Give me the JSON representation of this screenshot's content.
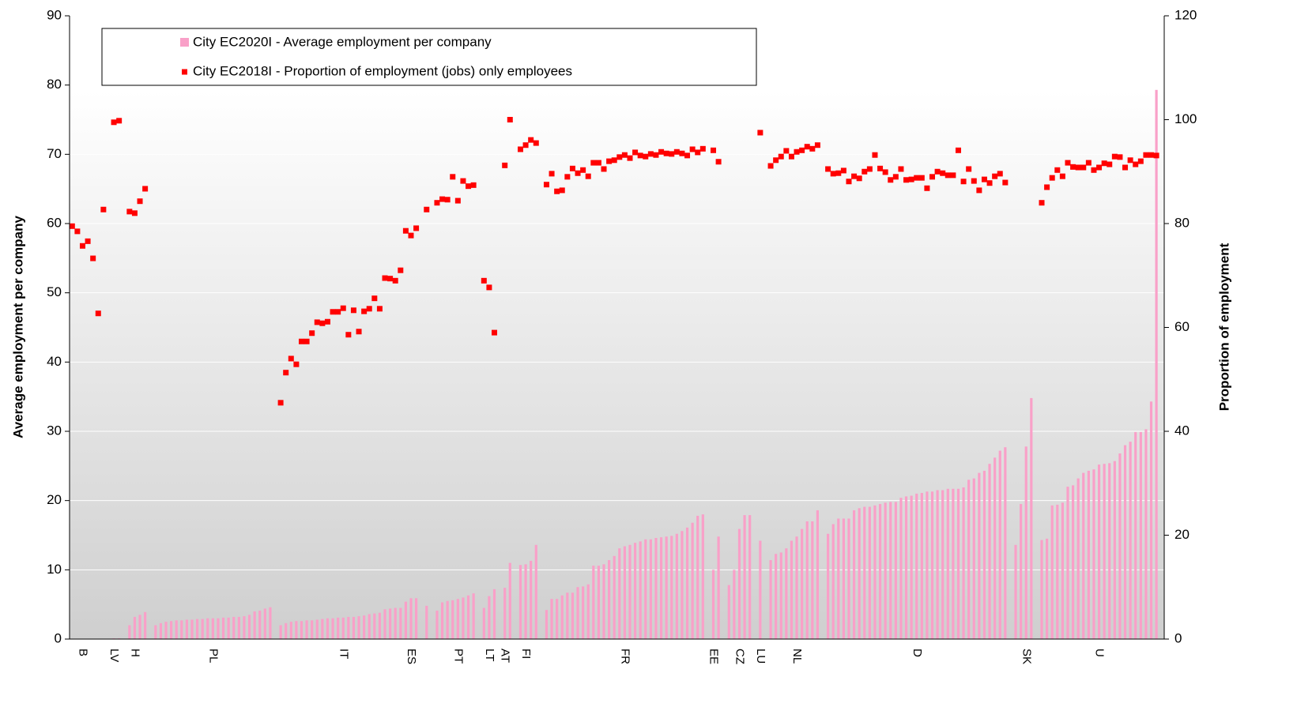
{
  "chart_data": {
    "type": "bar",
    "y_label": "Average employment per company",
    "y2_label": "Proportion of employment",
    "ylim": [
      0,
      90
    ],
    "yticks": [
      0,
      10,
      20,
      30,
      40,
      50,
      60,
      70,
      80,
      90
    ],
    "y2lim": [
      0,
      120
    ],
    "y2ticks": [
      0,
      20,
      40,
      60,
      80,
      100,
      120
    ],
    "grid": true,
    "legend": "top",
    "categories": [
      null,
      null,
      "B",
      null,
      null,
      null,
      null,
      null,
      "LV",
      null,
      null,
      null,
      "H",
      null,
      null,
      null,
      null,
      null,
      null,
      null,
      null,
      null,
      null,
      null,
      null,
      null,
      null,
      "PL",
      null,
      null,
      null,
      null,
      null,
      null,
      null,
      null,
      null,
      null,
      null,
      null,
      null,
      null,
      null,
      null,
      null,
      null,
      null,
      null,
      null,
      null,
      null,
      null,
      "IT",
      null,
      null,
      null,
      null,
      null,
      null,
      null,
      null,
      null,
      null,
      null,
      null,
      "ES",
      null,
      null,
      null,
      null,
      null,
      null,
      null,
      null,
      "PT",
      null,
      null,
      null,
      null,
      null,
      "LT",
      null,
      null,
      "AT",
      null,
      null,
      null,
      "FI",
      null,
      null,
      null,
      null,
      null,
      null,
      null,
      null,
      null,
      null,
      null,
      null,
      null,
      null,
      null,
      null,
      null,
      null,
      "FR",
      null,
      null,
      null,
      null,
      null,
      null,
      null,
      null,
      null,
      null,
      null,
      null,
      null,
      null,
      null,
      null,
      "EE",
      null,
      null,
      null,
      null,
      "CZ",
      null,
      null,
      null,
      "LU",
      null,
      null,
      null,
      null,
      null,
      null,
      "NL",
      null,
      null,
      null,
      null,
      null,
      null,
      null,
      null,
      null,
      null,
      null,
      null,
      null,
      null,
      null,
      null,
      null,
      null,
      null,
      null,
      null,
      null,
      "D",
      null,
      null,
      null,
      null,
      null,
      null,
      null,
      null,
      null,
      null,
      null,
      null,
      null,
      null,
      null,
      null,
      null,
      null,
      null,
      null,
      "SK",
      null,
      null,
      null,
      null,
      null,
      null,
      null,
      null,
      null,
      null,
      null,
      null,
      null,
      "U",
      null,
      null,
      null,
      null,
      null,
      null,
      null,
      null,
      null,
      null,
      null,
      null
    ],
    "series": [
      {
        "name": "City EC2020I - Average employment per company",
        "type": "bar",
        "color": "#f9a0c8",
        "axis": "y",
        "values": [
          null,
          null,
          null,
          null,
          null,
          null,
          null,
          null,
          0.1,
          0.1,
          null,
          2.0,
          3.2,
          3.5,
          3.9,
          null,
          2.0,
          2.3,
          2.5,
          2.6,
          2.7,
          2.7,
          2.8,
          2.8,
          2.9,
          2.9,
          3.0,
          3.0,
          3.0,
          3.1,
          3.1,
          3.2,
          3.2,
          3.3,
          3.5,
          4.0,
          4.1,
          4.4,
          4.6,
          null,
          2.0,
          2.3,
          2.5,
          2.6,
          2.6,
          2.7,
          2.7,
          2.8,
          2.9,
          3.0,
          3.0,
          3.1,
          3.1,
          3.2,
          3.2,
          3.3,
          3.4,
          3.6,
          3.7,
          3.8,
          4.3,
          4.4,
          4.5,
          4.5,
          5.4,
          5.9,
          5.9,
          null,
          4.8,
          null,
          4.1,
          5.3,
          5.5,
          5.6,
          5.8,
          6.0,
          6.3,
          6.6,
          null,
          4.5,
          6.2,
          7.2,
          null,
          7.4,
          11.0,
          null,
          10.7,
          10.8,
          11.3,
          13.6,
          null,
          4.2,
          5.8,
          5.8,
          6.3,
          6.7,
          6.7,
          7.5,
          7.6,
          7.9,
          10.6,
          10.6,
          10.8,
          11.4,
          12.0,
          13.1,
          13.4,
          13.6,
          13.9,
          14.1,
          14.4,
          14.4,
          14.6,
          14.7,
          14.8,
          14.9,
          15.2,
          15.6,
          16.1,
          16.8,
          17.8,
          18.0,
          null,
          10.0,
          14.8,
          null,
          7.8,
          10.0,
          15.9,
          17.9,
          17.9,
          null,
          14.2,
          null,
          11.4,
          12.3,
          12.5,
          13.1,
          14.2,
          14.8,
          15.9,
          17.0,
          17.0,
          18.6,
          null,
          15.2,
          16.6,
          17.4,
          17.4,
          17.4,
          18.6,
          18.9,
          19.1,
          19.1,
          19.3,
          19.5,
          19.7,
          19.8,
          19.8,
          20.4,
          20.6,
          20.7,
          21.0,
          21.1,
          21.3,
          21.3,
          21.5,
          21.5,
          21.7,
          21.7,
          21.7,
          21.9,
          23.0,
          23.2,
          24.0,
          24.3,
          25.3,
          26.2,
          27.2,
          27.7,
          null,
          13.6,
          19.5,
          27.8,
          34.8,
          null,
          14.3,
          14.5,
          19.3,
          19.4,
          19.7,
          22.0,
          22.2,
          23.2,
          24.0,
          24.3,
          24.5,
          25.2,
          25.3,
          25.4,
          25.7,
          26.8,
          28.0,
          28.5,
          29.9,
          29.9,
          30.3,
          34.3,
          79.3,
          null
        ]
      },
      {
        "name": "City EC2018I - Proportion of employment (jobs) only employees",
        "type": "scatter",
        "color": "#ff0000",
        "axis": "y2",
        "values": [
          79.5,
          78.5,
          75.7,
          76.6,
          73.3,
          62.7,
          82.7,
          null,
          99.5,
          99.8,
          null,
          82.3,
          82.0,
          84.3,
          86.7,
          null,
          null,
          null,
          null,
          null,
          null,
          null,
          null,
          null,
          null,
          null,
          null,
          null,
          null,
          null,
          null,
          null,
          null,
          null,
          null,
          null,
          null,
          null,
          null,
          null,
          45.5,
          51.3,
          54.0,
          52.9,
          57.3,
          57.3,
          58.9,
          61.0,
          60.8,
          61.1,
          63.0,
          63.0,
          63.7,
          58.6,
          63.3,
          59.2,
          63.1,
          63.6,
          65.6,
          63.6,
          69.5,
          69.4,
          69.0,
          71.0,
          78.6,
          77.7,
          79.1,
          null,
          82.7,
          null,
          84.0,
          84.7,
          84.6,
          89.0,
          84.4,
          88.2,
          87.2,
          87.4,
          null,
          69.0,
          67.7,
          59.0,
          null,
          91.2,
          100.0,
          null,
          94.3,
          95.1,
          96.1,
          95.5,
          null,
          87.5,
          89.6,
          86.2,
          86.4,
          89.0,
          90.6,
          89.7,
          90.3,
          89.1,
          91.7,
          91.7,
          90.5,
          92.0,
          92.2,
          92.8,
          93.2,
          92.6,
          93.7,
          93.1,
          92.9,
          93.4,
          93.2,
          93.8,
          93.5,
          93.4,
          93.8,
          93.5,
          93.1,
          94.3,
          93.7,
          94.4,
          null,
          94.1,
          91.9,
          null,
          null,
          null,
          null,
          null,
          null,
          null,
          97.5,
          null,
          91.1,
          92.2,
          92.9,
          94.0,
          92.9,
          93.8,
          94.1,
          94.8,
          94.4,
          95.1,
          null,
          90.5,
          89.6,
          89.7,
          90.2,
          88.1,
          89.1,
          88.7,
          90.0,
          90.5,
          93.2,
          90.6,
          89.9,
          88.4,
          89.0,
          90.5,
          88.4,
          88.5,
          88.8,
          88.8,
          86.8,
          89.0,
          90.0,
          89.7,
          89.3,
          89.3,
          94.1,
          88.1,
          90.5,
          88.2,
          86.4,
          88.5,
          87.8,
          89.1,
          89.6,
          87.9,
          null,
          null,
          null,
          null,
          null,
          null,
          84.0,
          87.0,
          88.8,
          90.3,
          89.1,
          91.7,
          90.9,
          90.8,
          90.8,
          91.7,
          90.3,
          90.8,
          91.6,
          91.4,
          92.9,
          92.8,
          90.8,
          92.2,
          91.4,
          92.0,
          93.2,
          93.2,
          93.1,
          null
        ]
      }
    ]
  }
}
